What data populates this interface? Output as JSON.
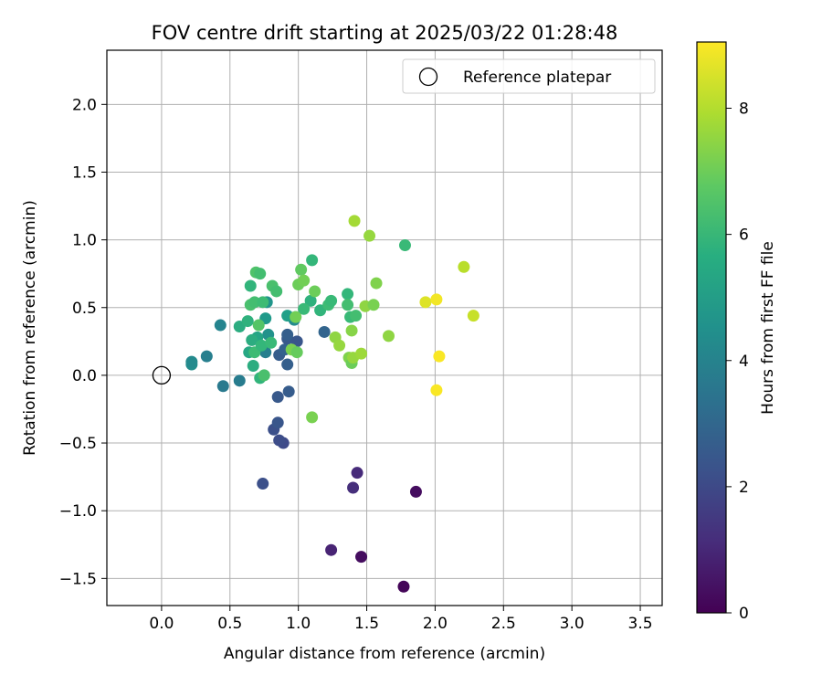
{
  "chart_data": {
    "type": "scatter",
    "title": "FOV centre drift starting at 2025/03/22 01:28:48",
    "xlabel": "Angular distance from reference (arcmin)",
    "ylabel": "Rotation from reference (arcmin)",
    "xlim": [
      -0.4,
      3.66
    ],
    "ylim": [
      -1.7,
      2.4
    ],
    "xticks": [
      0.0,
      0.5,
      1.0,
      1.5,
      2.0,
      2.5,
      3.0,
      3.5
    ],
    "xtick_labels": [
      "0.0",
      "0.5",
      "1.0",
      "1.5",
      "2.0",
      "2.5",
      "3.0",
      "3.5"
    ],
    "yticks": [
      -1.5,
      -1.0,
      -0.5,
      0.0,
      0.5,
      1.0,
      1.5,
      2.0
    ],
    "ytick_labels": [
      "−1.5",
      "−1.0",
      "−0.5",
      "0.0",
      "0.5",
      "1.0",
      "1.5",
      "2.0"
    ],
    "grid": true,
    "legend": {
      "position": "top-right",
      "label": "Reference platepar"
    },
    "reference_point": {
      "x": 0.0,
      "y": 0.0
    },
    "colorbar": {
      "label": "Hours from first FF file",
      "colormap": "viridis",
      "range": [
        0,
        9.05
      ],
      "ticks": [
        0,
        2,
        4,
        6,
        8
      ],
      "tick_labels": [
        "0",
        "2",
        "4",
        "6",
        "8"
      ]
    },
    "series": [
      {
        "points": [
          {
            "x": 1.77,
            "y": -1.56,
            "c": 0.1
          },
          {
            "x": 1.46,
            "y": -1.34,
            "c": 0.3
          },
          {
            "x": 1.86,
            "y": -0.86,
            "c": 0.3
          },
          {
            "x": 1.24,
            "y": -1.29,
            "c": 0.9
          },
          {
            "x": 1.43,
            "y": -0.72,
            "c": 1.1
          },
          {
            "x": 1.4,
            "y": -0.83,
            "c": 1.2
          },
          {
            "x": 0.74,
            "y": -0.8,
            "c": 2.2
          },
          {
            "x": 0.89,
            "y": -0.5,
            "c": 2.0
          },
          {
            "x": 0.86,
            "y": -0.48,
            "c": 2.1
          },
          {
            "x": 0.82,
            "y": -0.4,
            "c": 2.2
          },
          {
            "x": 0.85,
            "y": -0.35,
            "c": 2.4
          },
          {
            "x": 0.85,
            "y": -0.16,
            "c": 2.5
          },
          {
            "x": 0.93,
            "y": -0.12,
            "c": 2.6
          },
          {
            "x": 0.92,
            "y": 0.08,
            "c": 2.7
          },
          {
            "x": 0.86,
            "y": 0.15,
            "c": 2.6
          },
          {
            "x": 0.9,
            "y": 0.19,
            "c": 2.8
          },
          {
            "x": 0.92,
            "y": 0.27,
            "c": 2.5
          },
          {
            "x": 0.92,
            "y": 0.3,
            "c": 2.7
          },
          {
            "x": 0.99,
            "y": 0.25,
            "c": 2.4
          },
          {
            "x": 1.19,
            "y": 0.32,
            "c": 2.9
          },
          {
            "x": 0.45,
            "y": -0.08,
            "c": 3.7
          },
          {
            "x": 0.57,
            "y": -0.04,
            "c": 3.8
          },
          {
            "x": 0.22,
            "y": 0.08,
            "c": 4.4
          },
          {
            "x": 0.22,
            "y": 0.1,
            "c": 4.3
          },
          {
            "x": 0.33,
            "y": 0.14,
            "c": 3.9
          },
          {
            "x": 0.43,
            "y": 0.37,
            "c": 4.1
          },
          {
            "x": 0.76,
            "y": 0.17,
            "c": 3.9
          },
          {
            "x": 0.78,
            "y": 0.3,
            "c": 4.6
          },
          {
            "x": 0.76,
            "y": 0.42,
            "c": 4.9
          },
          {
            "x": 0.77,
            "y": 0.54,
            "c": 4.7
          },
          {
            "x": 0.97,
            "y": 0.41,
            "c": 4.3
          },
          {
            "x": 0.98,
            "y": 0.43,
            "c": 5.0
          },
          {
            "x": 0.92,
            "y": 0.44,
            "c": 5.1
          },
          {
            "x": 0.57,
            "y": 0.36,
            "c": 5.6
          },
          {
            "x": 0.63,
            "y": 0.4,
            "c": 5.8
          },
          {
            "x": 0.64,
            "y": 0.17,
            "c": 5.4
          },
          {
            "x": 0.67,
            "y": 0.07,
            "c": 5.6
          },
          {
            "x": 0.7,
            "y": 0.28,
            "c": 5.3
          },
          {
            "x": 0.66,
            "y": 0.26,
            "c": 5.6
          },
          {
            "x": 0.72,
            "y": -0.02,
            "c": 5.9
          },
          {
            "x": 0.75,
            "y": 0.0,
            "c": 6.4
          },
          {
            "x": 0.68,
            "y": 0.17,
            "c": 6.2
          },
          {
            "x": 0.73,
            "y": 0.22,
            "c": 6.0
          },
          {
            "x": 0.8,
            "y": 0.24,
            "c": 6.1
          },
          {
            "x": 0.71,
            "y": 0.37,
            "c": 6.6
          },
          {
            "x": 0.65,
            "y": 0.52,
            "c": 6.4
          },
          {
            "x": 0.65,
            "y": 0.66,
            "c": 5.9
          },
          {
            "x": 0.68,
            "y": 0.54,
            "c": 6.3
          },
          {
            "x": 0.69,
            "y": 0.76,
            "c": 6.5
          },
          {
            "x": 0.72,
            "y": 0.75,
            "c": 6.3
          },
          {
            "x": 0.74,
            "y": 0.54,
            "c": 6.2
          },
          {
            "x": 0.81,
            "y": 0.66,
            "c": 6.4
          },
          {
            "x": 0.84,
            "y": 0.62,
            "c": 6.3
          },
          {
            "x": 1.09,
            "y": 0.55,
            "c": 5.8
          },
          {
            "x": 1.1,
            "y": 0.85,
            "c": 6.0
          },
          {
            "x": 1.04,
            "y": 0.49,
            "c": 6.1
          },
          {
            "x": 1.16,
            "y": 0.48,
            "c": 5.9
          },
          {
            "x": 1.22,
            "y": 0.52,
            "c": 6.2
          },
          {
            "x": 1.24,
            "y": 0.55,
            "c": 6.1
          },
          {
            "x": 1.36,
            "y": 0.6,
            "c": 6.0
          },
          {
            "x": 1.36,
            "y": 0.52,
            "c": 6.3
          },
          {
            "x": 1.38,
            "y": 0.43,
            "c": 6.1
          },
          {
            "x": 1.42,
            "y": 0.44,
            "c": 6.3
          },
          {
            "x": 1.78,
            "y": 0.96,
            "c": 6.1
          },
          {
            "x": 1.02,
            "y": 0.78,
            "c": 6.8
          },
          {
            "x": 1.0,
            "y": 0.67,
            "c": 7.0
          },
          {
            "x": 1.04,
            "y": 0.7,
            "c": 7.1
          },
          {
            "x": 1.12,
            "y": 0.62,
            "c": 7.0
          },
          {
            "x": 0.95,
            "y": 0.19,
            "c": 7.2
          },
          {
            "x": 0.99,
            "y": 0.17,
            "c": 6.9
          },
          {
            "x": 0.98,
            "y": 0.43,
            "c": 7.1
          },
          {
            "x": 1.1,
            "y": -0.31,
            "c": 7.2
          },
          {
            "x": 1.27,
            "y": 0.28,
            "c": 7.5
          },
          {
            "x": 1.3,
            "y": 0.22,
            "c": 7.6
          },
          {
            "x": 1.37,
            "y": 0.13,
            "c": 7.3
          },
          {
            "x": 1.39,
            "y": 0.09,
            "c": 7.0
          },
          {
            "x": 1.4,
            "y": 0.13,
            "c": 7.6
          },
          {
            "x": 1.39,
            "y": 0.33,
            "c": 7.4
          },
          {
            "x": 1.46,
            "y": 0.16,
            "c": 7.7
          },
          {
            "x": 1.49,
            "y": 0.51,
            "c": 7.5
          },
          {
            "x": 1.52,
            "y": 1.03,
            "c": 7.6
          },
          {
            "x": 1.55,
            "y": 0.52,
            "c": 7.2
          },
          {
            "x": 1.57,
            "y": 0.68,
            "c": 7.3
          },
          {
            "x": 1.41,
            "y": 1.14,
            "c": 7.8
          },
          {
            "x": 1.66,
            "y": 0.29,
            "c": 7.5
          },
          {
            "x": 2.21,
            "y": 0.8,
            "c": 8.1
          },
          {
            "x": 2.28,
            "y": 0.44,
            "c": 8.3
          },
          {
            "x": 1.93,
            "y": 0.54,
            "c": 8.6
          },
          {
            "x": 2.01,
            "y": 0.56,
            "c": 8.9
          },
          {
            "x": 2.03,
            "y": 0.14,
            "c": 9.0
          },
          {
            "x": 2.01,
            "y": -0.11,
            "c": 9.0
          }
        ]
      }
    ]
  }
}
